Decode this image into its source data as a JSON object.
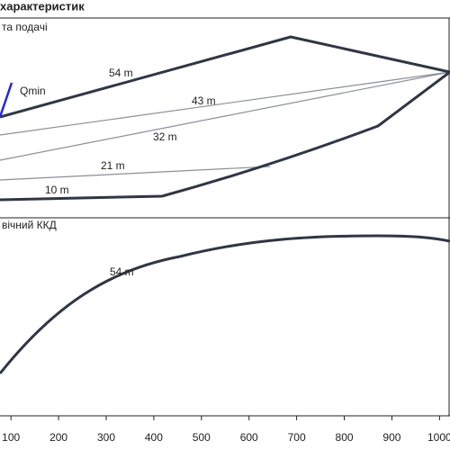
{
  "chart_data": {
    "type": "line",
    "title": "характеристик",
    "panels": [
      {
        "label": "та подачі",
        "curve_labels": [
          "54 m",
          "43 m",
          "32 m",
          "21 m",
          "10 m"
        ],
        "annotation": "Qmin"
      },
      {
        "label": "вічний ККД",
        "curve_labels": [
          "54 m"
        ]
      }
    ],
    "xlim": [
      77,
      1022
    ],
    "xticks": [
      100,
      200,
      300,
      400,
      500,
      600,
      700,
      800,
      900,
      1000
    ]
  }
}
